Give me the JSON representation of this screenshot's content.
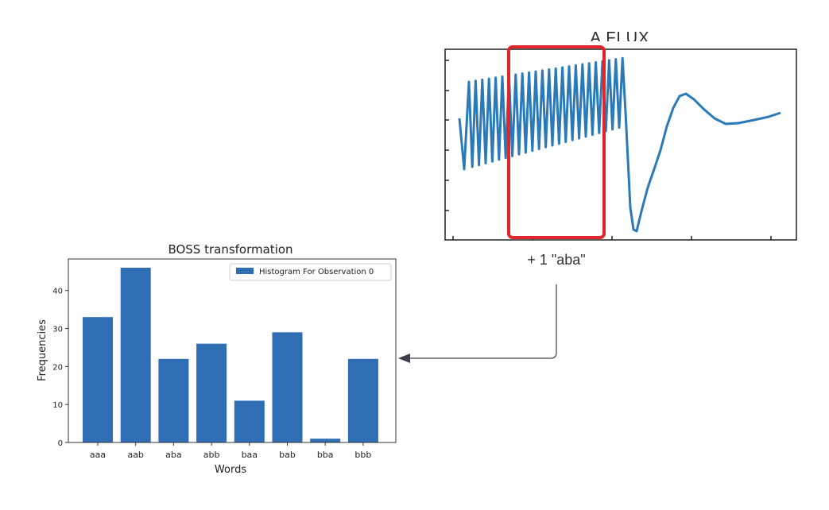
{
  "flux_panel": {
    "title": "A FLUX",
    "highlight_color": "#e0262a",
    "line_color": "#2a7ab9"
  },
  "annotation": {
    "label": "+ 1 \"aba\""
  },
  "connector": {
    "color": "#3a3f4a"
  },
  "chart_data": {
    "type": "bar",
    "title": "BOSS transformation",
    "xlabel": "Words",
    "ylabel": "Frequencies",
    "categories": [
      "aaa",
      "aab",
      "aba",
      "abb",
      "baa",
      "bab",
      "bba",
      "bbb"
    ],
    "series": [
      {
        "name": "Histogram For Observation 0",
        "values": [
          33,
          46,
          22,
          26,
          11,
          29,
          1,
          22
        ]
      }
    ],
    "ylim": [
      0,
      48.3
    ],
    "yticks": [
      0,
      10,
      20,
      30,
      40
    ],
    "legend_position": "top-right",
    "bar_color": "#2f6eb5",
    "grid": false
  }
}
